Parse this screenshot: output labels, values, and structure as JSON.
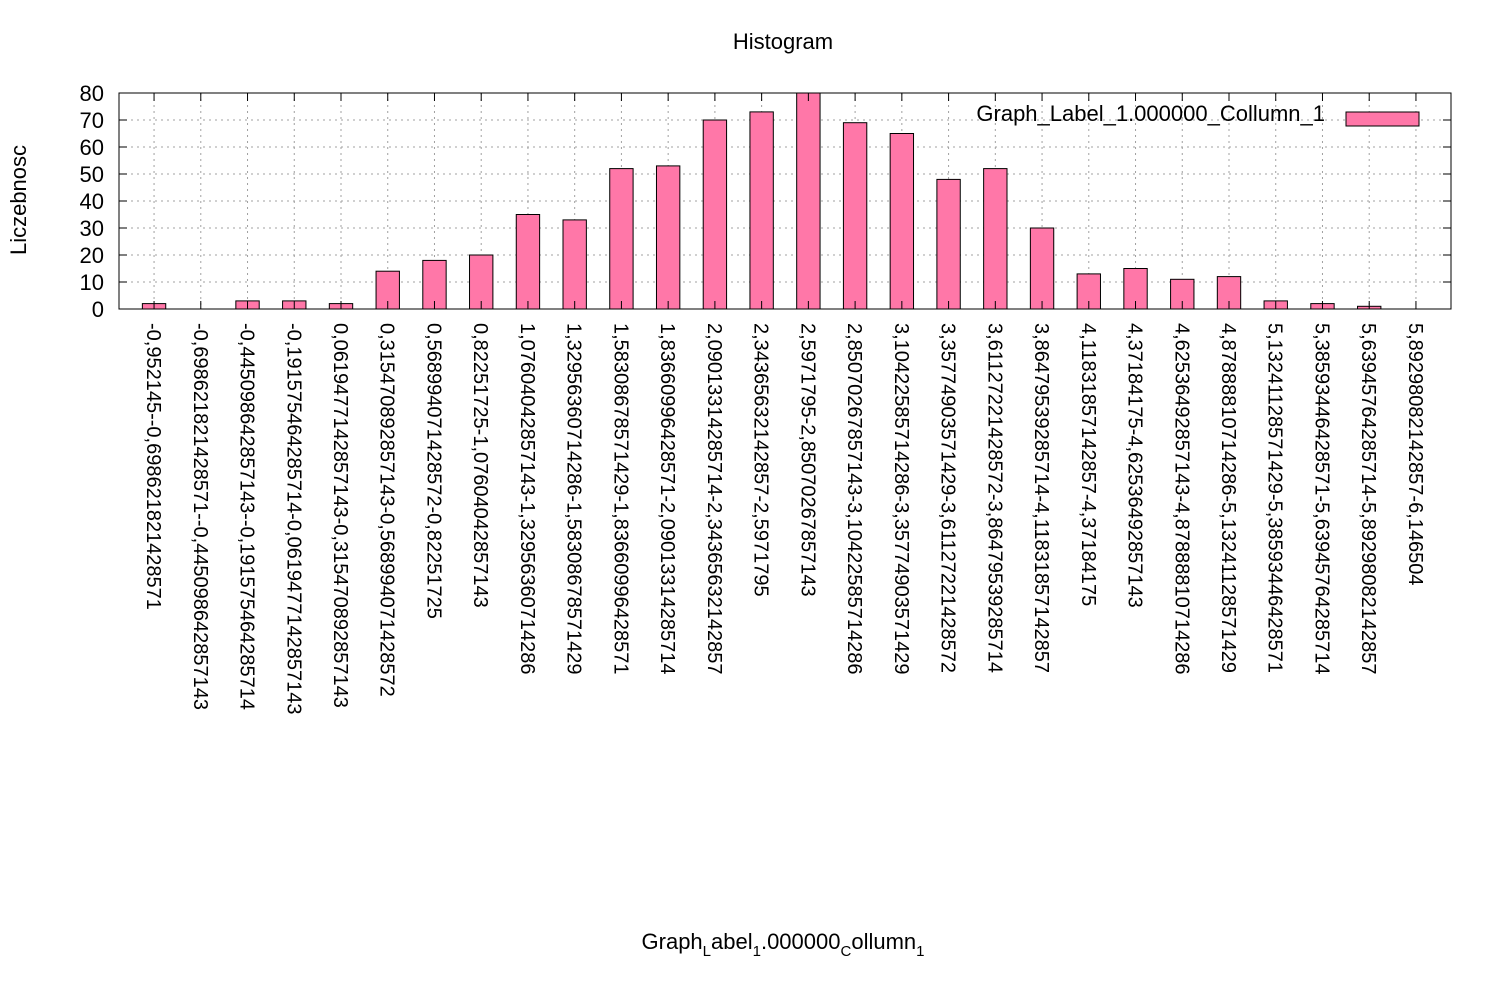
{
  "chart_data": {
    "type": "bar",
    "title": "Histogram",
    "xlabel": {
      "parts": [
        {
          "text": "Graph",
          "sub": false
        },
        {
          "text": "L",
          "sub": true
        },
        {
          "text": "abel",
          "sub": false
        },
        {
          "text": "1",
          "sub": true
        },
        {
          "text": ".000000",
          "sub": false
        },
        {
          "text": "C",
          "sub": true
        },
        {
          "text": "ollumn",
          "sub": false
        },
        {
          "text": "1",
          "sub": true
        }
      ]
    },
    "ylabel": "Liczebnosc",
    "ylim": [
      0,
      80
    ],
    "yticks": [
      0,
      10,
      20,
      30,
      40,
      50,
      60,
      70,
      80
    ],
    "grid": true,
    "legend_position": "top-right",
    "categories": [
      "-0,952145--0,698621821428571",
      "-0,698621821428571--0,445098642857143",
      "-0,445098642857143--0,191575464285714",
      "-0,191575464285714-0,0619477142857143",
      "0,0619477142857143-0,315470892857143",
      "0,315470892857143-0,568994071428572",
      "0,568994071428572-0,82251725",
      "0,82251725-1,07604042857143",
      "1,07604042857143-1,32956360714286",
      "1,32956360714286-1,58308678571429",
      "1,58308678571429-1,83660996428571",
      "1,83660996428571-2,09013314285714",
      "2,09013314285714-2,34365632142857",
      "2,34365632142857-2,5971795",
      "2,5971795-2,85070267857143",
      "2,85070267857143-3,10422585714286",
      "3,10422585714286-3,35774903571429",
      "3,35774903571429-3,61127221428572",
      "3,61127221428572-3,86479539285714",
      "3,86479539285714-4,11831857142857",
      "4,11831857142857-4,37184175",
      "4,37184175-4,62536492857143",
      "4,62536492857143-4,87888810714286",
      "4,87888810714286-5,13241128571429",
      "5,13241128571429-5,38593446428571",
      "5,38593446428571-5,63945764285714",
      "5,63945764285714-5,89298082142857",
      "5,89298082142857-6,146504"
    ],
    "series": [
      {
        "name": "Graph_Label_1.000000_Collumn_1",
        "color": "#ff77a8",
        "values": [
          2,
          0,
          3,
          3,
          2,
          14,
          18,
          20,
          35,
          33,
          52,
          53,
          70,
          73,
          80,
          69,
          65,
          48,
          52,
          30,
          13,
          15,
          11,
          12,
          3,
          2,
          1,
          0
        ]
      }
    ]
  }
}
